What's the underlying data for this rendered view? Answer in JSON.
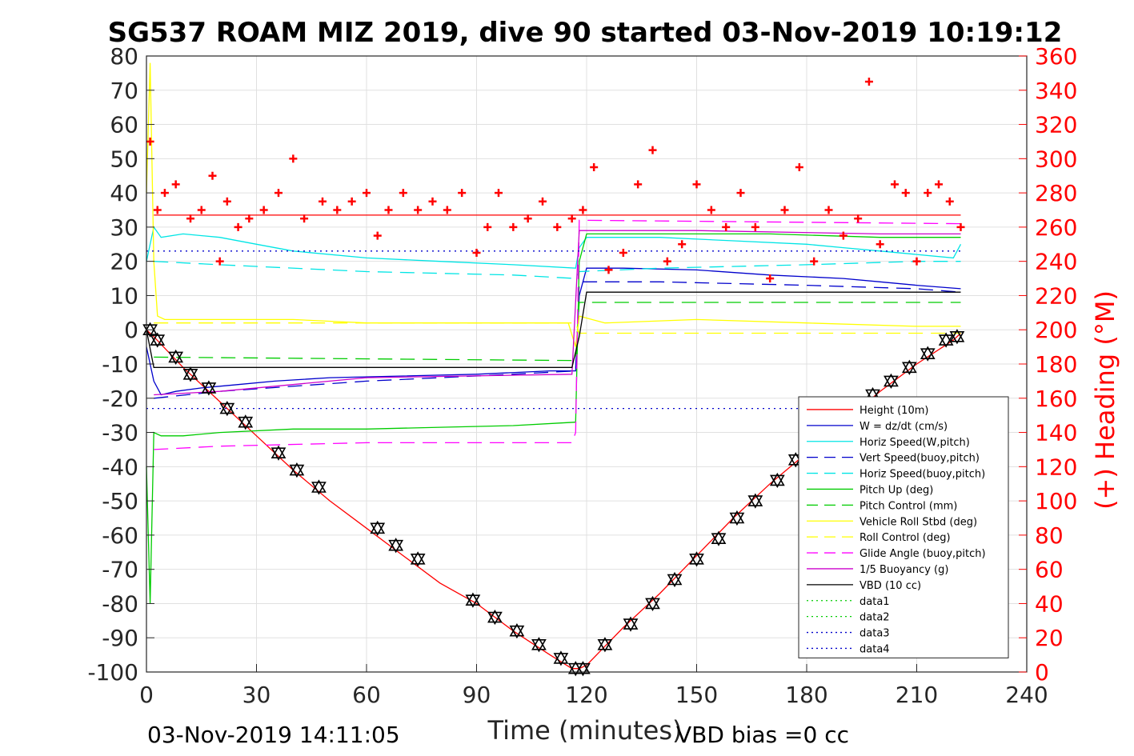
{
  "chart_data": {
    "type": "line",
    "title": "SG537 ROAM MIZ 2019, dive 90 started 03-Nov-2019 10:19:12",
    "xlabel": "Time (minutes)",
    "ylabel": "",
    "y2label": "(+) Heading (°M)",
    "xlim": [
      0,
      240
    ],
    "ylim": [
      -100,
      80
    ],
    "y2lim": [
      0,
      360
    ],
    "xticks": [
      "0",
      "30",
      "60",
      "90",
      "120",
      "150",
      "180",
      "210",
      "240"
    ],
    "yticks": [
      "80",
      "70",
      "60",
      "50",
      "40",
      "30",
      "20",
      "10",
      "0",
      "-10",
      "-20",
      "-30",
      "-40",
      "-50",
      "-60",
      "-70",
      "-80",
      "-90",
      "-100"
    ],
    "y2ticks": [
      "360",
      "340",
      "320",
      "300",
      "280",
      "260",
      "240",
      "220",
      "200",
      "180",
      "160",
      "140",
      "120",
      "100",
      "80",
      "60",
      "40",
      "20",
      "0"
    ],
    "grid": true,
    "legend_position": "bottom-right",
    "footer_left": "03-Nov-2019 14:11:05",
    "footer_right": "VBD bias =0 cc",
    "legend": [
      {
        "label": "Height (10m)",
        "color": "#ff0000",
        "style": "solid"
      },
      {
        "label": "W = dz/dt (cm/s)",
        "color": "#0000cc",
        "style": "solid"
      },
      {
        "label": "Horiz Speed(W,pitch)",
        "color": "#00e5e5",
        "style": "solid"
      },
      {
        "label": "Vert Speed(buoy,pitch)",
        "color": "#0000cc",
        "style": "dashed"
      },
      {
        "label": "Horiz Speed(buoy,pitch)",
        "color": "#00e5e5",
        "style": "dashed"
      },
      {
        "label": "Pitch Up (deg)",
        "color": "#00cc00",
        "style": "solid"
      },
      {
        "label": "Pitch Control (mm)",
        "color": "#00cc00",
        "style": "dashed"
      },
      {
        "label": "Vehicle Roll Stbd (deg)",
        "color": "#ffff00",
        "style": "solid"
      },
      {
        "label": "Roll Control (deg)",
        "color": "#ffff00",
        "style": "dashed"
      },
      {
        "label": "Glide Angle (buoy,pitch)",
        "color": "#ff00ff",
        "style": "dashed"
      },
      {
        "label": "1/5 Buoyancy (g)",
        "color": "#cc00cc",
        "style": "solid"
      },
      {
        "label": "VBD (10 cc)",
        "color": "#000000",
        "style": "solid"
      },
      {
        "label": "data1",
        "color": "#00cc00",
        "style": "dotted"
      },
      {
        "label": "data2",
        "color": "#00cc00",
        "style": "dotted"
      },
      {
        "label": "data3",
        "color": "#0000cc",
        "style": "dotted"
      },
      {
        "label": "data4",
        "color": "#0000cc",
        "style": "dotted"
      }
    ],
    "series": [
      {
        "name": "Height (10m)",
        "axis": "left",
        "color": "#ff0000",
        "style": "solid",
        "x": [
          0,
          2,
          10,
          20,
          30,
          40,
          50,
          60,
          70,
          80,
          90,
          100,
          110,
          116,
          118,
          120,
          130,
          140,
          150,
          160,
          170,
          180,
          190,
          200,
          210,
          220,
          222
        ],
        "y": [
          0,
          -2,
          -11,
          -21,
          -31,
          -41,
          -50,
          -58,
          -66,
          -74,
          -80,
          -88,
          -95,
          -99,
          -99,
          -98,
          -87,
          -77,
          -66,
          -55,
          -45,
          -36,
          -27,
          -18,
          -10,
          -3,
          -1
        ]
      },
      {
        "name": "Height (10m) upper",
        "axis": "left",
        "color": "#ff0000",
        "style": "solid",
        "x": [
          2,
          222
        ],
        "y": [
          33.5,
          33.5
        ]
      },
      {
        "name": "W = dz/dt (cm/s)",
        "axis": "left",
        "color": "#0000cc",
        "style": "solid",
        "x": [
          0,
          2,
          4,
          8,
          15,
          25,
          35,
          50,
          70,
          90,
          110,
          117,
          118,
          120,
          130,
          150,
          170,
          190,
          200,
          210,
          222
        ],
        "y": [
          -5,
          -15,
          -19,
          -18,
          -17,
          -16,
          -15,
          -14,
          -13.5,
          -13,
          -12,
          -12,
          10,
          18,
          18,
          17.5,
          16,
          15,
          14,
          13,
          12
        ]
      },
      {
        "name": "Horiz Speed(W,pitch)",
        "axis": "left",
        "color": "#00e5e5",
        "style": "solid",
        "x": [
          0,
          2,
          4,
          10,
          20,
          30,
          40,
          60,
          80,
          100,
          117,
          118,
          120,
          140,
          160,
          180,
          190,
          200,
          210,
          220,
          222
        ],
        "y": [
          20,
          30,
          27,
          28,
          27,
          25,
          23,
          21,
          20,
          19,
          18,
          24,
          27,
          27,
          26,
          25,
          24,
          23,
          22,
          21,
          25
        ]
      },
      {
        "name": "Vert Speed(buoy,pitch)",
        "axis": "left",
        "color": "#0000cc",
        "style": "dashed",
        "x": [
          2,
          20,
          60,
          100,
          117,
          118,
          140,
          180,
          210,
          222
        ],
        "y": [
          -20,
          -18,
          -15,
          -13,
          -12,
          14,
          14,
          13,
          12,
          11
        ]
      },
      {
        "name": "Horiz Speed(buoy,pitch)",
        "axis": "left",
        "color": "#00e5e5",
        "style": "dashed",
        "x": [
          2,
          20,
          60,
          100,
          117,
          118,
          140,
          180,
          210,
          222
        ],
        "y": [
          20,
          19,
          17,
          16,
          15,
          17,
          18,
          19,
          20,
          20
        ]
      },
      {
        "name": "Pitch Up (deg)",
        "axis": "left",
        "color": "#00cc00",
        "style": "solid",
        "x": [
          0,
          1,
          2,
          4,
          10,
          20,
          40,
          60,
          80,
          100,
          117,
          118,
          120,
          140,
          170,
          200,
          222
        ],
        "y": [
          -40,
          -80,
          -30,
          -31,
          -31,
          -30,
          -29,
          -29,
          -28.5,
          -28,
          -27,
          20,
          28,
          28,
          28,
          27,
          27
        ]
      },
      {
        "name": "Pitch Control (mm)",
        "axis": "left",
        "color": "#00cc00",
        "style": "dashed",
        "x": [
          2,
          117,
          118,
          222
        ],
        "y": [
          -8,
          -9,
          8,
          8
        ]
      },
      {
        "name": "Vehicle Roll Stbd (deg)",
        "axis": "left",
        "color": "#ffff00",
        "style": "solid",
        "x": [
          0,
          1,
          2,
          3,
          5,
          20,
          40,
          60,
          80,
          100,
          115,
          117,
          118,
          125,
          150,
          180,
          210,
          222
        ],
        "y": [
          40,
          78,
          20,
          4,
          3,
          3,
          3,
          2,
          2,
          2,
          2,
          -5,
          4,
          2,
          3,
          2,
          1,
          1
        ]
      },
      {
        "name": "Roll Control (deg)",
        "axis": "left",
        "color": "#ffff00",
        "style": "dashed",
        "x": [
          2,
          117,
          118,
          222
        ],
        "y": [
          2,
          2,
          -1,
          -1
        ]
      },
      {
        "name": "Glide Angle (buoy,pitch)",
        "axis": "left",
        "color": "#ff00ff",
        "style": "dashed",
        "x": [
          2,
          20,
          60,
          100,
          116,
          117,
          118,
          222
        ],
        "y": [
          -35,
          -34,
          -33,
          -33,
          -33,
          -30,
          32,
          31
        ]
      },
      {
        "name": "1/5 Buoyancy (g)",
        "axis": "left",
        "color": "#cc00cc",
        "style": "solid",
        "x": [
          2,
          20,
          60,
          116,
          118,
          150,
          200,
          222
        ],
        "y": [
          -19,
          -18,
          -14,
          -13,
          29,
          29,
          28,
          28
        ]
      },
      {
        "name": "VBD (10 cc)",
        "axis": "left",
        "color": "#000000",
        "style": "solid",
        "x": [
          0,
          2,
          116,
          118,
          120,
          222
        ],
        "y": [
          0,
          -11,
          -11,
          -2,
          11,
          11
        ]
      },
      {
        "name": "data3",
        "axis": "left",
        "color": "#0000cc",
        "style": "dotted",
        "x": [
          0,
          222
        ],
        "y": [
          23,
          23
        ]
      },
      {
        "name": "data4",
        "axis": "left",
        "color": "#0000cc",
        "style": "dotted",
        "x": [
          0,
          222
        ],
        "y": [
          -23,
          -23
        ]
      },
      {
        "name": "(+) Heading (°M)",
        "axis": "right",
        "color": "#ff0000",
        "style": "markers",
        "x": [
          1,
          3,
          5,
          8,
          12,
          15,
          18,
          20,
          22,
          25,
          28,
          32,
          36,
          40,
          43,
          48,
          52,
          56,
          60,
          63,
          66,
          70,
          74,
          78,
          82,
          86,
          90,
          93,
          96,
          100,
          104,
          108,
          112,
          116,
          119,
          122,
          126,
          130,
          134,
          138,
          142,
          146,
          150,
          154,
          158,
          162,
          166,
          170,
          174,
          178,
          182,
          186,
          190,
          194,
          197,
          200,
          204,
          207,
          210,
          213,
          216,
          219,
          222
        ],
        "y": [
          310,
          270,
          280,
          285,
          265,
          270,
          290,
          240,
          275,
          260,
          265,
          270,
          280,
          300,
          265,
          275,
          270,
          275,
          280,
          255,
          270,
          280,
          270,
          275,
          270,
          280,
          245,
          260,
          280,
          260,
          265,
          275,
          260,
          265,
          270,
          295,
          235,
          245,
          285,
          305,
          240,
          250,
          285,
          270,
          260,
          280,
          260,
          230,
          270,
          295,
          240,
          270,
          255,
          265,
          345,
          250,
          285,
          280,
          240,
          280,
          285,
          275,
          260
        ]
      },
      {
        "name": "Glide path markers",
        "axis": "left",
        "color": "#000000",
        "style": "triangles",
        "x": [
          1,
          3,
          8,
          12,
          17,
          22,
          27,
          36,
          41,
          47,
          63,
          68,
          74,
          89,
          95,
          101,
          107,
          113,
          117,
          119,
          125,
          132,
          138,
          144,
          150,
          156,
          161,
          166,
          172,
          177,
          182,
          187,
          193,
          198,
          203,
          208,
          213,
          218,
          221
        ],
        "y": [
          0,
          -3,
          -8,
          -13,
          -17,
          -23,
          -27,
          -36,
          -41,
          -46,
          -58,
          -63,
          -67,
          -79,
          -84,
          -88,
          -92,
          -96,
          -99,
          -99,
          -92,
          -86,
          -80,
          -73,
          -67,
          -61,
          -55,
          -50,
          -44,
          -38,
          -32,
          -27,
          -22,
          -19,
          -15,
          -11,
          -7,
          -3,
          -2
        ]
      }
    ]
  }
}
